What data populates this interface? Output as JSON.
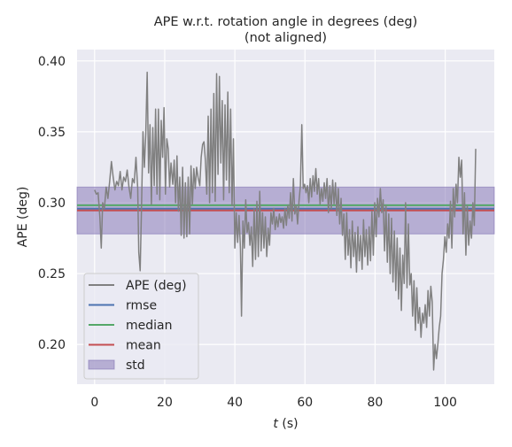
{
  "chart_data": {
    "type": "line",
    "title": "APE w.r.t. rotation angle in degrees (deg)",
    "subtitle": "(not aligned)",
    "xlabel_var": "t",
    "xlabel_unit": " (s)",
    "ylabel": "APE (deg)",
    "xlim": [
      -5,
      114
    ],
    "ylim": [
      0.172,
      0.408
    ],
    "xticks": [
      0,
      20,
      40,
      60,
      80,
      100
    ],
    "xtick_labels": [
      "0",
      "20",
      "40",
      "60",
      "80",
      "100"
    ],
    "yticks": [
      0.2,
      0.25,
      0.3,
      0.35,
      0.4
    ],
    "ytick_labels": [
      "0.20",
      "0.25",
      "0.30",
      "0.35",
      "0.40"
    ],
    "grid": true,
    "legend_position": "lower-left",
    "stats": {
      "rmse": 0.2958,
      "median": 0.2982,
      "mean": 0.2945,
      "std": 0.0165
    },
    "series": [
      {
        "name": "APE (deg)",
        "color": "#808080",
        "points": [
          [
            0.0,
            0.309
          ],
          [
            0.5,
            0.306
          ],
          [
            1.0,
            0.307
          ],
          [
            1.5,
            0.29
          ],
          [
            1.9,
            0.268
          ],
          [
            2.3,
            0.3
          ],
          [
            2.8,
            0.296
          ],
          [
            3.3,
            0.311
          ],
          [
            3.8,
            0.303
          ],
          [
            4.3,
            0.315
          ],
          [
            4.8,
            0.329
          ],
          [
            5.3,
            0.318
          ],
          [
            5.8,
            0.309
          ],
          [
            6.3,
            0.315
          ],
          [
            6.8,
            0.312
          ],
          [
            7.3,
            0.322
          ],
          [
            7.8,
            0.309
          ],
          [
            8.3,
            0.318
          ],
          [
            8.8,
            0.315
          ],
          [
            9.3,
            0.323
          ],
          [
            9.8,
            0.311
          ],
          [
            10.3,
            0.303
          ],
          [
            10.8,
            0.317
          ],
          [
            11.3,
            0.314
          ],
          [
            11.8,
            0.332
          ],
          [
            12.3,
            0.31
          ],
          [
            12.6,
            0.265
          ],
          [
            13.0,
            0.252
          ],
          [
            13.4,
            0.299
          ],
          [
            13.8,
            0.35
          ],
          [
            14.2,
            0.325
          ],
          [
            14.6,
            0.349
          ],
          [
            15.0,
            0.392
          ],
          [
            15.4,
            0.321
          ],
          [
            15.8,
            0.355
          ],
          [
            16.2,
            0.299
          ],
          [
            16.6,
            0.353
          ],
          [
            17.0,
            0.312
          ],
          [
            17.4,
            0.366
          ],
          [
            17.8,
            0.306
          ],
          [
            18.2,
            0.366
          ],
          [
            18.6,
            0.302
          ],
          [
            19.0,
            0.358
          ],
          [
            19.4,
            0.332
          ],
          [
            19.8,
            0.367
          ],
          [
            20.2,
            0.306
          ],
          [
            20.6,
            0.345
          ],
          [
            21.0,
            0.338
          ],
          [
            21.4,
            0.311
          ],
          [
            21.8,
            0.328
          ],
          [
            22.3,
            0.313
          ],
          [
            22.7,
            0.33
          ],
          [
            23.1,
            0.3
          ],
          [
            23.5,
            0.333
          ],
          [
            23.9,
            0.294
          ],
          [
            24.3,
            0.318
          ],
          [
            24.7,
            0.277
          ],
          [
            25.1,
            0.325
          ],
          [
            25.5,
            0.275
          ],
          [
            25.9,
            0.314
          ],
          [
            26.3,
            0.276
          ],
          [
            26.7,
            0.318
          ],
          [
            27.1,
            0.278
          ],
          [
            27.5,
            0.326
          ],
          [
            27.9,
            0.299
          ],
          [
            28.3,
            0.324
          ],
          [
            28.7,
            0.31
          ],
          [
            29.1,
            0.325
          ],
          [
            29.5,
            0.318
          ],
          [
            30.0,
            0.312
          ],
          [
            30.4,
            0.332
          ],
          [
            30.8,
            0.341
          ],
          [
            31.2,
            0.343
          ],
          [
            31.6,
            0.33
          ],
          [
            32.0,
            0.306
          ],
          [
            32.4,
            0.361
          ],
          [
            32.8,
            0.3
          ],
          [
            33.2,
            0.366
          ],
          [
            33.6,
            0.307
          ],
          [
            34.0,
            0.377
          ],
          [
            34.4,
            0.301
          ],
          [
            34.8,
            0.391
          ],
          [
            35.2,
            0.32
          ],
          [
            35.6,
            0.389
          ],
          [
            36.0,
            0.328
          ],
          [
            36.4,
            0.372
          ],
          [
            36.8,
            0.302
          ],
          [
            37.2,
            0.369
          ],
          [
            37.6,
            0.316
          ],
          [
            38.0,
            0.378
          ],
          [
            38.4,
            0.307
          ],
          [
            38.8,
            0.366
          ],
          [
            39.2,
            0.298
          ],
          [
            39.6,
            0.345
          ],
          [
            40.0,
            0.268
          ],
          [
            40.4,
            0.293
          ],
          [
            40.8,
            0.272
          ],
          [
            41.2,
            0.291
          ],
          [
            41.6,
            0.268
          ],
          [
            41.9,
            0.22
          ],
          [
            42.3,
            0.287
          ],
          [
            42.7,
            0.268
          ],
          [
            43.1,
            0.302
          ],
          [
            43.5,
            0.279
          ],
          [
            43.9,
            0.286
          ],
          [
            44.3,
            0.27
          ],
          [
            44.7,
            0.283
          ],
          [
            45.1,
            0.255
          ],
          [
            45.5,
            0.296
          ],
          [
            45.9,
            0.26
          ],
          [
            46.3,
            0.301
          ],
          [
            46.7,
            0.262
          ],
          [
            47.1,
            0.308
          ],
          [
            47.5,
            0.266
          ],
          [
            47.9,
            0.293
          ],
          [
            48.3,
            0.268
          ],
          [
            48.7,
            0.29
          ],
          [
            49.1,
            0.262
          ],
          [
            49.5,
            0.282
          ],
          [
            49.9,
            0.27
          ],
          [
            50.3,
            0.293
          ],
          [
            50.7,
            0.285
          ],
          [
            51.1,
            0.296
          ],
          [
            51.5,
            0.281
          ],
          [
            51.9,
            0.29
          ],
          [
            52.3,
            0.283
          ],
          [
            52.7,
            0.292
          ],
          [
            53.1,
            0.286
          ],
          [
            53.5,
            0.29
          ],
          [
            53.9,
            0.282
          ],
          [
            54.3,
            0.296
          ],
          [
            54.7,
            0.284
          ],
          [
            55.1,
            0.298
          ],
          [
            55.5,
            0.289
          ],
          [
            55.9,
            0.307
          ],
          [
            56.3,
            0.287
          ],
          [
            56.7,
            0.317
          ],
          [
            57.1,
            0.292
          ],
          [
            57.5,
            0.298
          ],
          [
            57.9,
            0.285
          ],
          [
            58.3,
            0.301
          ],
          [
            58.7,
            0.312
          ],
          [
            59.1,
            0.355
          ],
          [
            59.5,
            0.31
          ],
          [
            59.9,
            0.313
          ],
          [
            60.3,
            0.307
          ],
          [
            60.7,
            0.312
          ],
          [
            61.1,
            0.3
          ],
          [
            61.5,
            0.317
          ],
          [
            61.9,
            0.304
          ],
          [
            62.3,
            0.319
          ],
          [
            62.7,
            0.308
          ],
          [
            63.1,
            0.324
          ],
          [
            63.5,
            0.306
          ],
          [
            63.9,
            0.317
          ],
          [
            64.3,
            0.299
          ],
          [
            64.7,
            0.31
          ],
          [
            65.1,
            0.301
          ],
          [
            65.5,
            0.314
          ],
          [
            65.9,
            0.303
          ],
          [
            66.3,
            0.317
          ],
          [
            66.7,
            0.293
          ],
          [
            67.1,
            0.312
          ],
          [
            67.5,
            0.296
          ],
          [
            67.9,
            0.316
          ],
          [
            68.3,
            0.299
          ],
          [
            68.7,
            0.314
          ],
          [
            69.1,
            0.291
          ],
          [
            69.5,
            0.31
          ],
          [
            69.9,
            0.285
          ],
          [
            70.3,
            0.303
          ],
          [
            70.7,
            0.277
          ],
          [
            71.1,
            0.292
          ],
          [
            71.5,
            0.26
          ],
          [
            71.9,
            0.293
          ],
          [
            72.3,
            0.263
          ],
          [
            72.7,
            0.281
          ],
          [
            73.1,
            0.254
          ],
          [
            73.5,
            0.287
          ],
          [
            73.9,
            0.262
          ],
          [
            74.3,
            0.279
          ],
          [
            74.7,
            0.251
          ],
          [
            75.1,
            0.283
          ],
          [
            75.5,
            0.259
          ],
          [
            75.9,
            0.277
          ],
          [
            76.3,
            0.253
          ],
          [
            76.7,
            0.288
          ],
          [
            77.1,
            0.262
          ],
          [
            77.5,
            0.281
          ],
          [
            77.9,
            0.256
          ],
          [
            78.3,
            0.283
          ],
          [
            78.7,
            0.259
          ],
          [
            79.1,
            0.294
          ],
          [
            79.5,
            0.263
          ],
          [
            79.9,
            0.3
          ],
          [
            80.3,
            0.276
          ],
          [
            80.7,
            0.303
          ],
          [
            81.1,
            0.29
          ],
          [
            81.5,
            0.31
          ],
          [
            81.9,
            0.293
          ],
          [
            82.3,
            0.302
          ],
          [
            82.7,
            0.266
          ],
          [
            83.1,
            0.298
          ],
          [
            83.5,
            0.258
          ],
          [
            83.9,
            0.292
          ],
          [
            84.3,
            0.25
          ],
          [
            84.7,
            0.289
          ],
          [
            85.1,
            0.244
          ],
          [
            85.5,
            0.28
          ],
          [
            85.9,
            0.238
          ],
          [
            86.3,
            0.275
          ],
          [
            86.7,
            0.232
          ],
          [
            87.1,
            0.268
          ],
          [
            87.5,
            0.224
          ],
          [
            87.9,
            0.263
          ],
          [
            88.3,
            0.243
          ],
          [
            88.7,
            0.3
          ],
          [
            89.1,
            0.24
          ],
          [
            89.5,
            0.285
          ],
          [
            89.9,
            0.242
          ],
          [
            90.3,
            0.25
          ],
          [
            90.7,
            0.22
          ],
          [
            91.1,
            0.245
          ],
          [
            91.5,
            0.21
          ],
          [
            91.9,
            0.24
          ],
          [
            92.3,
            0.215
          ],
          [
            92.7,
            0.226
          ],
          [
            93.1,
            0.205
          ],
          [
            93.5,
            0.222
          ],
          [
            93.9,
            0.215
          ],
          [
            94.3,
            0.228
          ],
          [
            94.7,
            0.212
          ],
          [
            95.1,
            0.238
          ],
          [
            95.5,
            0.22
          ],
          [
            95.9,
            0.241
          ],
          [
            96.3,
            0.23
          ],
          [
            96.7,
            0.182
          ],
          [
            97.1,
            0.2
          ],
          [
            97.5,
            0.19
          ],
          [
            97.9,
            0.2
          ],
          [
            98.3,
            0.212
          ],
          [
            98.7,
            0.22
          ],
          [
            99.1,
            0.25
          ],
          [
            99.5,
            0.26
          ],
          [
            99.9,
            0.276
          ],
          [
            100.3,
            0.265
          ],
          [
            100.7,
            0.285
          ],
          [
            101.1,
            0.275
          ],
          [
            101.5,
            0.301
          ],
          [
            101.9,
            0.268
          ],
          [
            102.3,
            0.31
          ],
          [
            102.7,
            0.29
          ],
          [
            103.1,
            0.313
          ],
          [
            103.5,
            0.3
          ],
          [
            103.9,
            0.332
          ],
          [
            104.3,
            0.318
          ],
          [
            104.7,
            0.33
          ],
          [
            105.1,
            0.278
          ],
          [
            105.5,
            0.307
          ],
          [
            105.9,
            0.263
          ],
          [
            106.3,
            0.298
          ],
          [
            106.7,
            0.27
          ],
          [
            107.1,
            0.287
          ],
          [
            107.5,
            0.275
          ],
          [
            107.9,
            0.3
          ],
          [
            108.3,
            0.284
          ],
          [
            108.7,
            0.338
          ]
        ]
      },
      {
        "name": "rmse",
        "color": "#4c72b0",
        "value": 0.2958
      },
      {
        "name": "median",
        "color": "#55a868",
        "value": 0.2982
      },
      {
        "name": "mean",
        "color": "#c44e52",
        "value": 0.2945
      },
      {
        "name": "std",
        "color": "#8172b3"
      }
    ]
  }
}
